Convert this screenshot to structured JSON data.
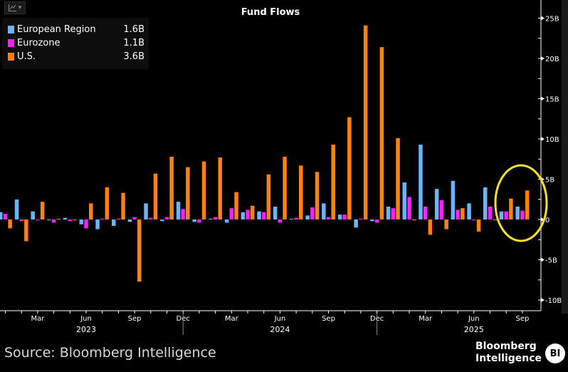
{
  "toolbar": {
    "chart_icon": "line-chart-icon",
    "dropdown_icon": "chevron-down-icon",
    "dropdown_glyph": "▾"
  },
  "legend": [
    {
      "name": "European Region",
      "value": "1.6B",
      "color": "#6cb4f5"
    },
    {
      "name": "Eurozone",
      "value": "1.1B",
      "color": "#ff1fff"
    },
    {
      "name": "U.S.",
      "value": "3.6B",
      "color": "#ff8210"
    }
  ],
  "footer": {
    "source": "Source: Bloomberg Intelligence",
    "logo_line1": "Bloomberg",
    "logo_line2": "Intelligence",
    "logo_badge": "BI"
  },
  "annotation": {
    "type": "highlight-ellipse",
    "color": "#f5e02a",
    "covers": [
      "Aug 2025",
      "Sep 2025"
    ]
  },
  "chart_data": {
    "type": "bar",
    "title": "Fund Flows",
    "xlabel": "",
    "ylabel": "",
    "ylim": [
      -10.5,
      27
    ],
    "y_ticks": [
      {
        "value": 25,
        "label": "25B"
      },
      {
        "value": 20,
        "label": "20B"
      },
      {
        "value": 15,
        "label": "15B"
      },
      {
        "value": 10,
        "label": "10B"
      },
      {
        "value": 5,
        "label": "5B"
      },
      {
        "value": 0,
        "label": "0"
      },
      {
        "value": -5,
        "label": "-5B"
      },
      {
        "value": -10,
        "label": "-10B"
      }
    ],
    "y_axis_position": "right",
    "legend_position": "top-left",
    "grid": false,
    "categories": [
      "Jan 2023",
      "Feb 2023",
      "Mar 2023",
      "Apr 2023",
      "May 2023",
      "Jun 2023",
      "Jul 2023",
      "Aug 2023",
      "Sep 2023",
      "Oct 2023",
      "Nov 2023",
      "Dec 2023",
      "Jan 2024",
      "Feb 2024",
      "Mar 2024",
      "Apr 2024",
      "May 2024",
      "Jun 2024",
      "Jul 2024",
      "Aug 2024",
      "Sep 2024",
      "Oct 2024",
      "Nov 2024",
      "Dec 2024",
      "Jan 2025",
      "Feb 2025",
      "Mar 2025",
      "Apr 2025",
      "May 2025",
      "Jun 2025",
      "Jul 2025",
      "Aug 2025",
      "Sep 2025"
    ],
    "month_labels": [
      {
        "index": 2,
        "label": "Mar"
      },
      {
        "index": 5,
        "label": "Jun"
      },
      {
        "index": 8,
        "label": "Sep"
      },
      {
        "index": 11,
        "label": "Dec"
      },
      {
        "index": 14,
        "label": "Mar"
      },
      {
        "index": 17,
        "label": "Jun"
      },
      {
        "index": 20,
        "label": "Sep"
      },
      {
        "index": 23,
        "label": "Dec"
      },
      {
        "index": 26,
        "label": "Mar"
      },
      {
        "index": 29,
        "label": "Jun"
      },
      {
        "index": 32,
        "label": "Sep"
      }
    ],
    "year_labels": [
      {
        "index": 5,
        "label": "2023"
      },
      {
        "index": 17,
        "label": "2024"
      },
      {
        "index": 29,
        "label": "2025"
      }
    ],
    "series": [
      {
        "name": "European Region",
        "color": "#6cb4f5",
        "values": [
          0.9,
          2.5,
          1.0,
          -0.1,
          0.2,
          -0.6,
          -1.2,
          -0.8,
          -0.3,
          2.0,
          -0.2,
          2.2,
          -0.3,
          0.1,
          -0.4,
          0.9,
          1.0,
          1.6,
          0.1,
          0.5,
          2.0,
          0.6,
          -1.0,
          -0.2,
          1.6,
          4.6,
          9.3,
          3.8,
          4.8,
          2.0,
          4.0,
          1.0,
          1.6
        ]
      },
      {
        "name": "Eurozone",
        "color": "#ff1fff",
        "values": [
          0.7,
          -0.2,
          -0.1,
          -0.4,
          -0.2,
          -1.1,
          0.1,
          0.1,
          0.3,
          0.2,
          0.3,
          1.3,
          -0.4,
          0.3,
          1.4,
          1.2,
          0.9,
          -0.4,
          0.2,
          1.5,
          0.3,
          0.6,
          0.1,
          -0.4,
          1.4,
          2.8,
          1.6,
          2.4,
          1.2,
          -0.1,
          1.6,
          1.0,
          1.1
        ]
      },
      {
        "name": "U.S.",
        "color": "#ff8210",
        "values": [
          -1.1,
          -2.7,
          2.2,
          0.1,
          -0.1,
          2.0,
          4.0,
          3.3,
          -7.7,
          5.7,
          7.8,
          6.5,
          7.2,
          7.7,
          3.4,
          1.7,
          5.6,
          7.8,
          6.7,
          5.9,
          9.3,
          12.7,
          24.1,
          21.4,
          10.1,
          -0.1,
          -1.9,
          -1.2,
          1.4,
          -1.5,
          0.0,
          2.6,
          3.6
        ]
      }
    ]
  }
}
